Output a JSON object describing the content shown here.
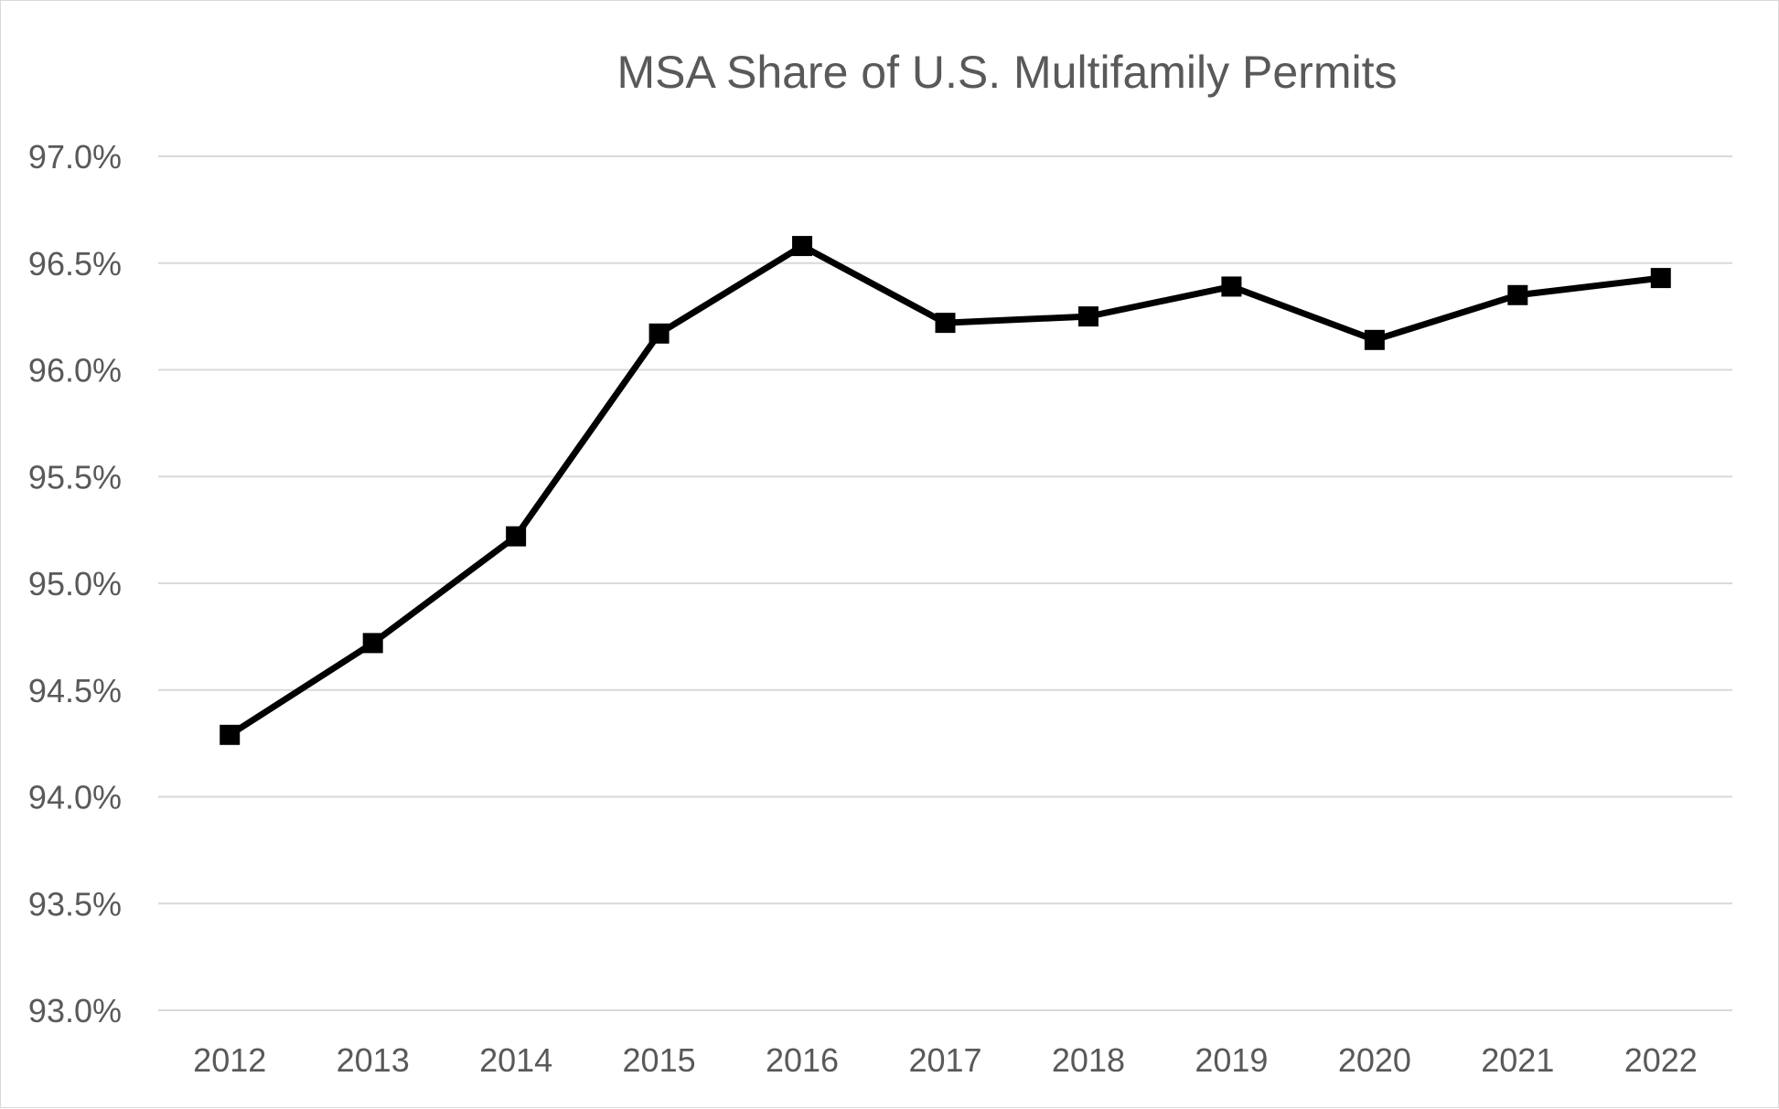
{
  "chart_data": {
    "type": "line",
    "title": "MSA Share of U.S. Multifamily Permits",
    "xlabel": "",
    "ylabel": "",
    "categories": [
      "2012",
      "2013",
      "2014",
      "2015",
      "2016",
      "2017",
      "2018",
      "2019",
      "2020",
      "2021",
      "2022"
    ],
    "series": [
      {
        "values": [
          94.29,
          94.72,
          95.22,
          96.17,
          96.58,
          96.22,
          96.25,
          96.39,
          96.14,
          96.35,
          96.43
        ]
      }
    ],
    "ylim": [
      93.0,
      97.0
    ],
    "y_ticks": [
      {
        "value": 93.0,
        "label": "93.0%"
      },
      {
        "value": 93.5,
        "label": "93.5%"
      },
      {
        "value": 94.0,
        "label": "94.0%"
      },
      {
        "value": 94.5,
        "label": "94.5%"
      },
      {
        "value": 95.0,
        "label": "95.0%"
      },
      {
        "value": 95.5,
        "label": "95.5%"
      },
      {
        "value": 96.0,
        "label": "96.0%"
      },
      {
        "value": 96.5,
        "label": "96.5%"
      },
      {
        "value": 97.0,
        "label": "97.0%"
      }
    ],
    "y_unit": "%",
    "grid": "horizontal",
    "legend": "none",
    "marker": "square",
    "colors": {
      "line": "#000000",
      "grid": "#d9d9d9",
      "text": "#595959",
      "border": "#d9d9d9"
    }
  }
}
